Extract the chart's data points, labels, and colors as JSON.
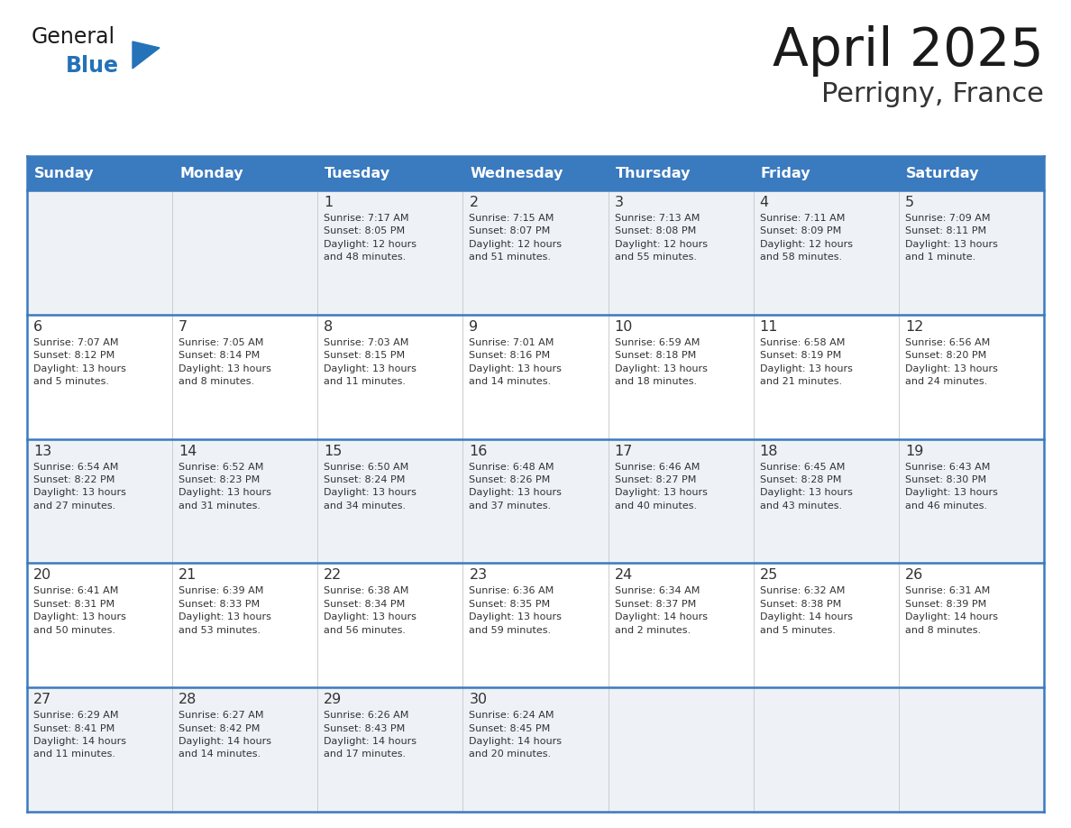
{
  "title": "April 2025",
  "subtitle": "Perrigny, France",
  "header_bg": "#3a7abf",
  "header_text_color": "#ffffff",
  "row_bg_odd": "#eef2f7",
  "row_bg_even": "#ffffff",
  "border_color": "#3a7abf",
  "text_color": "#333333",
  "days_of_week": [
    "Sunday",
    "Monday",
    "Tuesday",
    "Wednesday",
    "Thursday",
    "Friday",
    "Saturday"
  ],
  "weeks": [
    [
      {
        "day": "",
        "info": ""
      },
      {
        "day": "",
        "info": ""
      },
      {
        "day": "1",
        "info": "Sunrise: 7:17 AM\nSunset: 8:05 PM\nDaylight: 12 hours\nand 48 minutes."
      },
      {
        "day": "2",
        "info": "Sunrise: 7:15 AM\nSunset: 8:07 PM\nDaylight: 12 hours\nand 51 minutes."
      },
      {
        "day": "3",
        "info": "Sunrise: 7:13 AM\nSunset: 8:08 PM\nDaylight: 12 hours\nand 55 minutes."
      },
      {
        "day": "4",
        "info": "Sunrise: 7:11 AM\nSunset: 8:09 PM\nDaylight: 12 hours\nand 58 minutes."
      },
      {
        "day": "5",
        "info": "Sunrise: 7:09 AM\nSunset: 8:11 PM\nDaylight: 13 hours\nand 1 minute."
      }
    ],
    [
      {
        "day": "6",
        "info": "Sunrise: 7:07 AM\nSunset: 8:12 PM\nDaylight: 13 hours\nand 5 minutes."
      },
      {
        "day": "7",
        "info": "Sunrise: 7:05 AM\nSunset: 8:14 PM\nDaylight: 13 hours\nand 8 minutes."
      },
      {
        "day": "8",
        "info": "Sunrise: 7:03 AM\nSunset: 8:15 PM\nDaylight: 13 hours\nand 11 minutes."
      },
      {
        "day": "9",
        "info": "Sunrise: 7:01 AM\nSunset: 8:16 PM\nDaylight: 13 hours\nand 14 minutes."
      },
      {
        "day": "10",
        "info": "Sunrise: 6:59 AM\nSunset: 8:18 PM\nDaylight: 13 hours\nand 18 minutes."
      },
      {
        "day": "11",
        "info": "Sunrise: 6:58 AM\nSunset: 8:19 PM\nDaylight: 13 hours\nand 21 minutes."
      },
      {
        "day": "12",
        "info": "Sunrise: 6:56 AM\nSunset: 8:20 PM\nDaylight: 13 hours\nand 24 minutes."
      }
    ],
    [
      {
        "day": "13",
        "info": "Sunrise: 6:54 AM\nSunset: 8:22 PM\nDaylight: 13 hours\nand 27 minutes."
      },
      {
        "day": "14",
        "info": "Sunrise: 6:52 AM\nSunset: 8:23 PM\nDaylight: 13 hours\nand 31 minutes."
      },
      {
        "day": "15",
        "info": "Sunrise: 6:50 AM\nSunset: 8:24 PM\nDaylight: 13 hours\nand 34 minutes."
      },
      {
        "day": "16",
        "info": "Sunrise: 6:48 AM\nSunset: 8:26 PM\nDaylight: 13 hours\nand 37 minutes."
      },
      {
        "day": "17",
        "info": "Sunrise: 6:46 AM\nSunset: 8:27 PM\nDaylight: 13 hours\nand 40 minutes."
      },
      {
        "day": "18",
        "info": "Sunrise: 6:45 AM\nSunset: 8:28 PM\nDaylight: 13 hours\nand 43 minutes."
      },
      {
        "day": "19",
        "info": "Sunrise: 6:43 AM\nSunset: 8:30 PM\nDaylight: 13 hours\nand 46 minutes."
      }
    ],
    [
      {
        "day": "20",
        "info": "Sunrise: 6:41 AM\nSunset: 8:31 PM\nDaylight: 13 hours\nand 50 minutes."
      },
      {
        "day": "21",
        "info": "Sunrise: 6:39 AM\nSunset: 8:33 PM\nDaylight: 13 hours\nand 53 minutes."
      },
      {
        "day": "22",
        "info": "Sunrise: 6:38 AM\nSunset: 8:34 PM\nDaylight: 13 hours\nand 56 minutes."
      },
      {
        "day": "23",
        "info": "Sunrise: 6:36 AM\nSunset: 8:35 PM\nDaylight: 13 hours\nand 59 minutes."
      },
      {
        "day": "24",
        "info": "Sunrise: 6:34 AM\nSunset: 8:37 PM\nDaylight: 14 hours\nand 2 minutes."
      },
      {
        "day": "25",
        "info": "Sunrise: 6:32 AM\nSunset: 8:38 PM\nDaylight: 14 hours\nand 5 minutes."
      },
      {
        "day": "26",
        "info": "Sunrise: 6:31 AM\nSunset: 8:39 PM\nDaylight: 14 hours\nand 8 minutes."
      }
    ],
    [
      {
        "day": "27",
        "info": "Sunrise: 6:29 AM\nSunset: 8:41 PM\nDaylight: 14 hours\nand 11 minutes."
      },
      {
        "day": "28",
        "info": "Sunrise: 6:27 AM\nSunset: 8:42 PM\nDaylight: 14 hours\nand 14 minutes."
      },
      {
        "day": "29",
        "info": "Sunrise: 6:26 AM\nSunset: 8:43 PM\nDaylight: 14 hours\nand 17 minutes."
      },
      {
        "day": "30",
        "info": "Sunrise: 6:24 AM\nSunset: 8:45 PM\nDaylight: 14 hours\nand 20 minutes."
      },
      {
        "day": "",
        "info": ""
      },
      {
        "day": "",
        "info": ""
      },
      {
        "day": "",
        "info": ""
      }
    ]
  ],
  "logo_general_color": "#1a1a1a",
  "logo_blue_color": "#2472b8",
  "logo_triangle_color": "#2472b8"
}
